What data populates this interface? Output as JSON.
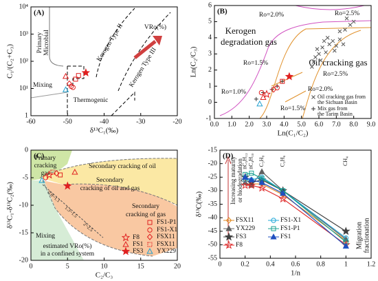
{
  "chart_data": [
    {
      "type": "scatter",
      "label": "(A)",
      "xlabel": "δ¹³C₁(‰)",
      "ylabel": "C₁/(C₂+C₃)",
      "xlim": [
        -60,
        -20
      ],
      "xticks": [
        -60,
        -50,
        -40,
        -30,
        -20
      ],
      "ylim": [
        1,
        10000
      ],
      "ylog": true,
      "yticks": [
        1,
        {
          "value": 10,
          "label": "10¹"
        },
        {
          "value": 100,
          "label": "10²"
        },
        {
          "value": 1000,
          "label": "10³"
        },
        {
          "value": 10000,
          "label": "10⁴"
        }
      ],
      "annotations": [
        "Primary",
        "Microbial",
        "Mixing",
        "Thermogenic",
        "Kerogen Type II",
        "Kerogen Type III",
        "VRo(%)"
      ],
      "series": [
        {
          "marker": "triangle",
          "color": "#e02020",
          "x": [
            -50.5
          ],
          "values": [
            28
          ]
        },
        {
          "marker": "diamond",
          "color": "#e02020",
          "x": [
            -49.5
          ],
          "values": [
            15
          ]
        },
        {
          "marker": "circle",
          "color": "#e02020",
          "x": [
            -49,
            -48.5
          ],
          "values": [
            12,
            11
          ]
        },
        {
          "marker": "square",
          "color": "#e02020",
          "x": [
            -47.8,
            -47
          ],
          "values": [
            22,
            30
          ]
        },
        {
          "marker": "triangle",
          "color": "#20a0d0",
          "x": [
            -50.5
          ],
          "values": [
            9
          ]
        },
        {
          "marker": "star",
          "color": "#e02020",
          "filled": true,
          "x": [
            -45
          ],
          "values": [
            38
          ]
        }
      ]
    },
    {
      "type": "scatter",
      "label": "(B)",
      "xlabel": "Ln(C₁/C₂)",
      "ylabel": "Ln(C₂/C₃)",
      "xlim": [
        0,
        9
      ],
      "xticks": [
        {
          "value": 0,
          "label": "0.0"
        },
        {
          "value": 1,
          "label": "1.0"
        },
        {
          "value": 2,
          "label": "2.0"
        },
        {
          "value": 3,
          "label": "3.0"
        },
        {
          "value": 4,
          "label": "4.0"
        },
        {
          "value": 5,
          "label": "5.0"
        },
        {
          "value": 6,
          "label": "6.0"
        },
        {
          "value": 7,
          "label": "7.0"
        },
        {
          "value": 8,
          "label": "8.0"
        },
        {
          "value": 9,
          "label": "9.0"
        }
      ],
      "ylim": [
        -1,
        6
      ],
      "yticks": [
        -1,
        0,
        1,
        2,
        3,
        4,
        5,
        6
      ],
      "annotations": [
        "Ro=2.0%",
        "Ro=2.5%",
        "Kerogen",
        "degradation gas",
        "Ro=1.5%",
        "Oil cracking gas",
        "Ro=2.5%",
        "Ro=1.0%",
        "Ro=2.0%",
        "Ro=1.5%",
        "Oil cracking gas from",
        "the Sichuan Basin",
        "Mix gas from",
        "the Tarim Basin"
      ],
      "series": [
        {
          "marker": "x",
          "color": "#555555",
          "x": [
            5.6,
            5.8,
            6.0,
            6.2,
            6.4,
            6.1,
            5.9,
            6.6,
            6.8,
            7.0,
            7.2,
            6.5,
            7.4,
            6.3,
            5.7,
            6.9,
            7.5,
            7.8,
            7.2,
            8.0,
            7.6
          ],
          "values": [
            2.2,
            2.8,
            3.0,
            3.4,
            3.1,
            2.6,
            3.3,
            3.6,
            3.8,
            3.5,
            3.9,
            4.0,
            3.6,
            3.8,
            2.5,
            3.2,
            4.5,
            4.8,
            4.4,
            5.0,
            5.2
          ]
        },
        {
          "marker": "plus",
          "color": "#333333",
          "x": [
            2.4,
            2.8,
            3.3,
            3.6,
            3.9
          ],
          "values": [
            0.2,
            0.6,
            0.8,
            1.0,
            1.3
          ]
        },
        {
          "marker": "star",
          "color": "#e02020",
          "x": [
            3.0
          ],
          "values": [
            0.5
          ]
        },
        {
          "marker": "circle",
          "color": "#e02020",
          "x": [
            2.7,
            3.6
          ],
          "values": [
            0.6,
            0.9
          ]
        },
        {
          "marker": "square",
          "color": "#e02020",
          "x": [
            3.9
          ],
          "values": [
            1.3
          ]
        },
        {
          "marker": "triangle",
          "color": "#e02020",
          "x": [
            2.8
          ],
          "values": [
            0.3
          ]
        },
        {
          "marker": "diamond",
          "color": "#e02020",
          "x": [
            3.4
          ],
          "values": [
            0.8
          ]
        },
        {
          "marker": "triangle",
          "color": "#20a0d0",
          "x": [
            2.6
          ],
          "values": [
            -0.1
          ]
        },
        {
          "marker": "star",
          "color": "#e02020",
          "filled": true,
          "x": [
            4.3
          ],
          "values": [
            1.6
          ]
        }
      ]
    },
    {
      "type": "scatter",
      "label": "(C)",
      "xlabel": "C₂/C₃",
      "ylabel": "δ¹³C₁-δ¹³C₂(‰)",
      "xlim": [
        0,
        20
      ],
      "xticks": [
        0,
        5,
        10,
        15,
        20
      ],
      "ylim": [
        -20,
        0
      ],
      "yticks": [
        0,
        -5,
        -10,
        -15,
        -20
      ],
      "annotations": [
        "Primary",
        "cracking",
        "gas",
        "Secondary cracking of oil",
        "Secondary",
        "cracking of oil and gas",
        "Secondary",
        "cracking of gas",
        "Mixing",
        "estimated VRo(%)",
        "in a confined system",
        "0.8~1.1",
        "1.3~1.5",
        "2~2.5"
      ],
      "series": [
        {
          "name": "F8",
          "marker": "star",
          "color": "#e02020",
          "x": [
            2.5
          ],
          "values": [
            -4.5
          ]
        },
        {
          "name": "FS1",
          "marker": "triangle",
          "color": "#e02020",
          "x": [
            6
          ],
          "values": [
            -4
          ]
        },
        {
          "name": "FS3",
          "marker": "star",
          "color": "#e02020",
          "filled": true,
          "x": [
            5
          ],
          "values": [
            -6.5
          ]
        },
        {
          "name": "FS1-P1",
          "marker": "square",
          "color": "#e02020",
          "x": [
            4
          ],
          "values": [
            -4.5
          ]
        },
        {
          "name": "FS1-X1",
          "marker": "circle",
          "color": "#e02020",
          "x": [
            2
          ],
          "values": [
            -5
          ]
        },
        {
          "name": "FSX11",
          "marker": "diamond",
          "color": "#e02020",
          "x": [
            3.5
          ],
          "values": [
            -4.2
          ]
        },
        {
          "name": "FSX11",
          "marker": "squaredot",
          "color": "#e02020",
          "x": [
            3
          ],
          "values": [
            -4
          ]
        },
        {
          "name": "YX229",
          "marker": "triangle",
          "color": "#20a0d0",
          "x": [
            1.5
          ],
          "values": [
            -5.5
          ]
        }
      ]
    },
    {
      "type": "line",
      "label": "(D)",
      "xlabel": "1/n",
      "ylabel": "δ¹³C(‰)",
      "xlim": [
        0,
        1.2
      ],
      "xticks": [
        0,
        0.2,
        0.4,
        0.6,
        0.8,
        1,
        1.2
      ],
      "ylim": [
        -55,
        -15
      ],
      "yticks": [
        -15,
        -20,
        -25,
        -30,
        -35,
        -40,
        -45,
        -50,
        -55
      ],
      "x": [
        0.2,
        0.25,
        0.333,
        0.5,
        1
      ],
      "component_labels": [
        "nC₅H₁₂",
        "nC₄H₁₀",
        "C₃H₈",
        "C₂H₆",
        "CH₄"
      ],
      "annotations": [
        "Increasing maturity",
        "or biodegradation",
        "Migration",
        "fractionation"
      ],
      "series": [
        {
          "name": "FSX11",
          "marker": "diamond",
          "color": "#e08a20",
          "values": [
            -26,
            -27.5,
            -27.5,
            -31.5,
            -48.5
          ]
        },
        {
          "name": "YX229",
          "marker": "triangle",
          "color": "#606060",
          "filled": true,
          "values": [
            -27,
            -28,
            -23,
            -30,
            -48
          ]
        },
        {
          "name": "FS3",
          "marker": "star",
          "color": "#404040",
          "filled": true,
          "values": [
            -25,
            -27,
            -26,
            -30,
            -45
          ]
        },
        {
          "name": "F8",
          "marker": "star",
          "color": "#e03030",
          "values": [
            -28,
            -28,
            -29,
            -33,
            -50
          ]
        },
        {
          "name": "FS1-X1",
          "marker": "circle",
          "color": "#20a8d8",
          "values": [
            -26,
            -26,
            -25,
            -30,
            -47.5
          ]
        },
        {
          "name": "FS1-P1",
          "marker": "square",
          "color": "#18a090",
          "values": [
            -24,
            -23.5,
            -25.5,
            -30,
            -49
          ]
        },
        {
          "name": "FS1",
          "marker": "triangle",
          "color": "#2050c0",
          "filled": true,
          "values": [
            -25,
            -26,
            -27,
            -31,
            -50.5
          ]
        }
      ]
    }
  ]
}
